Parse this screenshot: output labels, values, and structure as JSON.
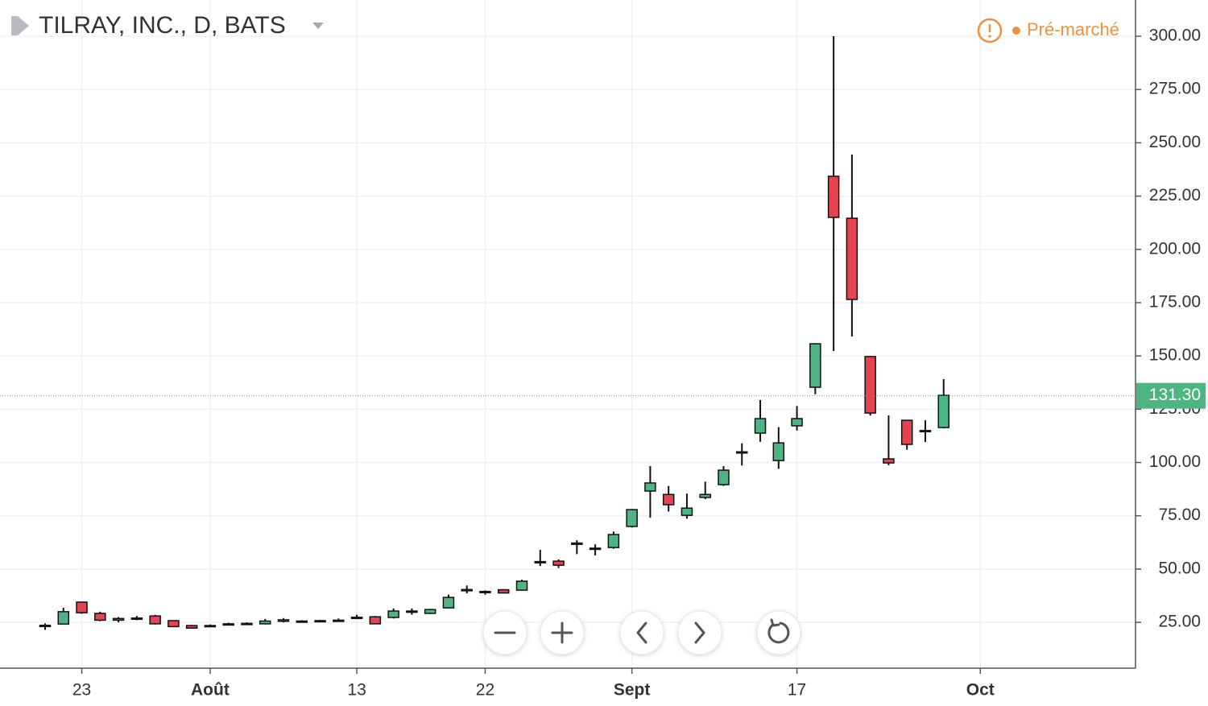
{
  "header": {
    "title": "TILRAY, INC., D, BATS",
    "status": "Pré-marché"
  },
  "chart_data": {
    "type": "candlestick",
    "categories": [
      null,
      null,
      "23",
      null,
      null,
      null,
      null,
      null,
      null,
      "Août",
      null,
      null,
      null,
      null,
      null,
      null,
      null,
      "13",
      null,
      null,
      null,
      null,
      null,
      null,
      "22",
      null,
      null,
      null,
      null,
      null,
      null,
      null,
      "Sept",
      null,
      null,
      null,
      null,
      null,
      null,
      null,
      null,
      "17",
      null,
      null,
      null,
      null,
      null,
      null,
      null,
      null,
      null,
      "Oct"
    ],
    "open": [
      23.2,
      24.2,
      34.5,
      29.2,
      26.8,
      26.5,
      28.0,
      25.8,
      23.5,
      23.2,
      23.8,
      24.5,
      24.3,
      25.5,
      25.6,
      25.4,
      25.6,
      26.8,
      27.6,
      27.3,
      29.8,
      29.2,
      31.8,
      39.8,
      39.5,
      40.3,
      40.1,
      53.0,
      53.7,
      61.6,
      59.5,
      60.1,
      70.0,
      86.6,
      85.0,
      75.2,
      83.6,
      89.6,
      104.5,
      113.8,
      100.9,
      117.2,
      135.3,
      234.3,
      214.6,
      149.7,
      101.7,
      119.8,
      114.5,
      116.4,
      null,
      null
    ],
    "high": [
      24.5,
      31.8,
      34.5,
      30.0,
      27.5,
      28.0,
      28.5,
      26.0,
      23.8,
      24.0,
      24.8,
      25.0,
      26.6,
      27.0,
      26.0,
      26.2,
      26.8,
      28.6,
      28.0,
      31.5,
      31.5,
      31.3,
      38.0,
      42.3,
      40.0,
      40.6,
      45.0,
      59.0,
      54.5,
      63.5,
      61.6,
      67.6,
      78.2,
      98.3,
      89.0,
      85.4,
      91.0,
      98.3,
      109.0,
      129.3,
      116.6,
      126.5,
      156.0,
      300.0,
      244.5,
      150.0,
      122.1,
      120.0,
      119.8,
      139.1,
      null,
      null
    ],
    "low": [
      21.5,
      24.0,
      29.0,
      25.5,
      25.0,
      26.0,
      24.0,
      22.7,
      22.0,
      22.8,
      23.6,
      24.0,
      24.0,
      25.0,
      25.0,
      25.0,
      25.3,
      26.5,
      24.2,
      26.8,
      28.6,
      28.9,
      31.5,
      38.6,
      38.0,
      38.6,
      39.8,
      51.4,
      50.5,
      57.0,
      56.4,
      59.5,
      69.5,
      74.1,
      77.0,
      73.6,
      82.8,
      89.0,
      98.6,
      109.7,
      97.0,
      115.0,
      132.0,
      152.3,
      159.1,
      122.0,
      98.7,
      106.0,
      109.6,
      116.0,
      null,
      null
    ],
    "close": [
      23.6,
      30.0,
      29.5,
      26.0,
      26.0,
      27.0,
      24.3,
      23.0,
      22.3,
      23.5,
      24.3,
      24.3,
      25.6,
      26.2,
      25.2,
      25.8,
      26.0,
      27.4,
      24.3,
      30.3,
      30.3,
      31.0,
      36.7,
      40.4,
      39.2,
      38.8,
      44.3,
      53.5,
      51.8,
      62.2,
      59.8,
      66.2,
      77.9,
      90.4,
      80.2,
      78.6,
      85.0,
      96.4,
      105.0,
      120.6,
      109.2,
      120.6,
      155.7,
      215.0,
      176.5,
      123.2,
      99.8,
      108.5,
      115.0,
      131.5,
      null,
      null
    ],
    "up_color": "#4cb580",
    "down_color": "#e5434f",
    "last_price": {
      "value": 131.3,
      "label": "131.30"
    },
    "ylim": [
      3.5,
      317.0
    ],
    "yticks": [
      {
        "value": 25,
        "label": "25.00"
      },
      {
        "value": 50,
        "label": "50.00"
      },
      {
        "value": 75,
        "label": "75.00"
      },
      {
        "value": 100,
        "label": "100.00"
      },
      {
        "value": 125,
        "label": "125.00"
      },
      {
        "value": 150,
        "label": "150.00"
      },
      {
        "value": 175,
        "label": "175.00"
      },
      {
        "value": 200,
        "label": "200.00"
      },
      {
        "value": 225,
        "label": "225.00"
      },
      {
        "value": 250,
        "label": "250.00"
      },
      {
        "value": 275,
        "label": "275.00"
      },
      {
        "value": 300,
        "label": "300.00"
      }
    ],
    "grid": true
  }
}
